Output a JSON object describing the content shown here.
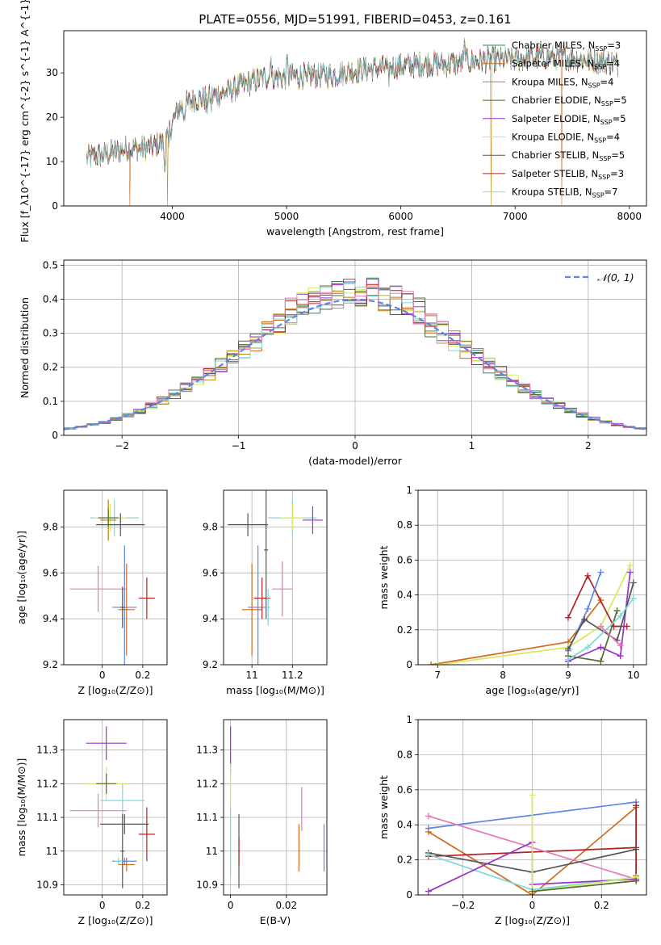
{
  "figure_title": "PLATE=0556, MJD=51991, FIBERID=0453, z=0.161",
  "colors": {
    "chabrier_miles": "#2e8b57",
    "salpeter_miles": "#d2691e",
    "kroupa_miles": "#b8860b",
    "chabrier_elodie": "#556b2f",
    "salpeter_elodie": "#9932cc",
    "kroupa_elodie": "#d4ec5a",
    "chabrier_stelib": "#555555",
    "salpeter_stelib": "#b22222",
    "kroupa_stelib": "#7fd8dc",
    "cornflower": "#5b86e5",
    "pink": "#e67ab8",
    "grid": "#b0b0b0"
  },
  "chart_data": [
    {
      "id": "spectrum",
      "type": "line",
      "xlabel": "wavelength [Angstrom, rest frame]",
      "ylabel": "Flux [f_λ10^{-17} erg cm^{-2} s^{-1} A^{-1}]",
      "xlim": [
        3050,
        8150
      ],
      "ylim": [
        0,
        39.5
      ],
      "xticks": [
        4000,
        5000,
        6000,
        7000,
        8000
      ],
      "yticks": [
        0,
        10,
        20,
        30
      ],
      "legend": {
        "placement": "top-right",
        "entries": [
          {
            "label": "Chabrier MILES, N",
            "sub": "SSP",
            "eq": "=3",
            "color": "chabrier_miles"
          },
          {
            "label": "Salpeter MILES, N",
            "sub": "SSP",
            "eq": "=4",
            "color": "salpeter_miles"
          },
          {
            "label": "Kroupa MILES, N",
            "sub": "SSP",
            "eq": "=4",
            "color": "kroupa_miles"
          },
          {
            "label": "Chabrier ELODIE, N",
            "sub": "SSP",
            "eq": "=5",
            "color": "chabrier_elodie"
          },
          {
            "label": "Salpeter ELODIE, N",
            "sub": "SSP",
            "eq": "=5",
            "color": "salpeter_elodie"
          },
          {
            "label": "Kroupa ELODIE, N",
            "sub": "SSP",
            "eq": "=4",
            "color": "kroupa_elodie"
          },
          {
            "label": "Chabrier STELIB, N",
            "sub": "SSP",
            "eq": "=5",
            "color": "chabrier_stelib"
          },
          {
            "label": "Salpeter STELIB, N",
            "sub": "SSP",
            "eq": "=3",
            "color": "salpeter_stelib"
          },
          {
            "label": "Kroupa STELIB, N",
            "sub": "SSP",
            "eq": "=7",
            "color": "kroupa_stelib"
          }
        ]
      },
      "continuum": [
        [
          3250,
          11
        ],
        [
          3400,
          11.5
        ],
        [
          3600,
          13
        ],
        [
          3750,
          13
        ],
        [
          3850,
          13.5
        ],
        [
          3950,
          15
        ],
        [
          4050,
          22
        ],
        [
          4200,
          24
        ],
        [
          4400,
          25
        ],
        [
          4600,
          27
        ],
        [
          4800,
          29
        ],
        [
          5000,
          29
        ],
        [
          5200,
          29.5
        ],
        [
          5400,
          29.5
        ],
        [
          5600,
          30.5
        ],
        [
          5800,
          31
        ],
        [
          6000,
          31.5
        ],
        [
          6200,
          32
        ],
        [
          6400,
          32
        ],
        [
          6600,
          32.5
        ],
        [
          6800,
          33
        ],
        [
          7000,
          33
        ],
        [
          7200,
          33.5
        ],
        [
          7400,
          33.5
        ],
        [
          7600,
          33
        ],
        [
          7800,
          32.5
        ],
        [
          7900,
          32
        ]
      ],
      "lines": [
        [
          4861,
          5
        ],
        [
          5175,
          -2
        ],
        [
          5890,
          -2
        ],
        [
          6563,
          3
        ],
        [
          4340,
          -2
        ],
        [
          3933,
          -4
        ],
        [
          3968,
          -3
        ],
        [
          4101,
          -2
        ],
        [
          5007,
          3
        ],
        [
          4300,
          -2
        ]
      ],
      "drops": [
        {
          "x": 3960,
          "series": "kroupa_miles"
        },
        {
          "x": 3630,
          "series": "salpeter_miles"
        },
        {
          "x": 6790,
          "series": "kroupa_miles"
        },
        {
          "x": 7410,
          "series": "salpeter_miles"
        }
      ]
    },
    {
      "id": "residual_histogram",
      "type": "bar",
      "xlabel": "(data-model)/error",
      "ylabel": "Normed distribution",
      "xlim": [
        -2.5,
        2.5
      ],
      "ylim": [
        0,
        0.515
      ],
      "xticks": [
        -2,
        -1,
        0,
        1,
        2
      ],
      "yticks": [
        0.0,
        0.1,
        0.2,
        0.3,
        0.4,
        0.5
      ],
      "bin_width": 0.1,
      "legend": {
        "placement": "top-right",
        "entries": [
          {
            "label": "𝒩(0, 1)",
            "color": "cornflower"
          }
        ]
      },
      "normal_curve": {
        "mean": 0,
        "sigma": 1
      }
    },
    {
      "id": "age_vs_Z",
      "type": "scatter",
      "xlabel": "Z [log₁₀(Z/Z⊙)]",
      "ylabel": "age  [log₁₀(age/yr)]",
      "xlim": [
        -0.19,
        0.32
      ],
      "ylim": [
        9.2,
        9.96
      ],
      "xticks": [
        0.0,
        0.2
      ],
      "yticks": [
        9.2,
        9.4,
        9.6,
        9.8
      ],
      "points": [
        {
          "x": 0.06,
          "y": 9.84,
          "xe": 0.12,
          "ye": 0.08,
          "c": "kroupa_stelib"
        },
        {
          "x": 0.04,
          "y": 9.84,
          "xe": 0.08,
          "ye": 0.06,
          "c": "kroupa_elodie"
        },
        {
          "x": 0.09,
          "y": 9.81,
          "xe": 0.12,
          "ye": 0.05,
          "c": "chabrier_stelib"
        },
        {
          "x": 0.03,
          "y": 9.83,
          "xe": 0.04,
          "ye": 0.09,
          "c": "kroupa_miles"
        },
        {
          "x": 0.03,
          "y": 9.84,
          "xe": 0.05,
          "ye": 0.04,
          "c": "chabrier_elodie"
        },
        {
          "x": -0.02,
          "y": 9.53,
          "xe": 0.14,
          "ye": 0.1,
          "c": "pink"
        },
        {
          "x": 0.11,
          "y": 9.45,
          "xe": 0.06,
          "ye": 0.27,
          "c": "cornflower"
        },
        {
          "x": 0.12,
          "y": 9.44,
          "xe": 0.04,
          "ye": 0.2,
          "c": "salpeter_miles"
        },
        {
          "x": 0.1,
          "y": 9.45,
          "xe": 0.01,
          "ye": 0.09,
          "c": "chabrier_stelib"
        },
        {
          "x": 0.22,
          "y": 9.49,
          "xe": 0.04,
          "ye": 0.09,
          "c": "salpeter_stelib"
        }
      ]
    },
    {
      "id": "age_vs_mass",
      "type": "scatter",
      "xlabel": "mass [log₁₀(M/M⊙)]",
      "ylabel": "",
      "xlim": [
        10.86,
        11.37
      ],
      "ylim": [
        9.2,
        9.96
      ],
      "xticks": [
        11.0,
        11.2
      ],
      "yticks": [
        9.2,
        9.4,
        9.6,
        9.8
      ],
      "points": [
        {
          "x": 11.2,
          "y": 9.84,
          "xe": 0.12,
          "ye": 0.08,
          "c": "kroupa_stelib"
        },
        {
          "x": 11.2,
          "y": 9.84,
          "xe": 0.06,
          "ye": 0.06,
          "c": "kroupa_elodie"
        },
        {
          "x": 11.3,
          "y": 9.83,
          "xe": 0.05,
          "ye": 0.06,
          "c": "salpeter_elodie"
        },
        {
          "x": 10.98,
          "y": 9.81,
          "xe": 0.1,
          "ye": 0.05,
          "c": "chabrier_stelib"
        },
        {
          "x": 11.07,
          "y": 9.7,
          "xe": 0.01,
          "ye": 0.3,
          "c": "chabrier_stelib"
        },
        {
          "x": 11.15,
          "y": 9.53,
          "xe": 0.05,
          "ye": 0.12,
          "c": "pink"
        },
        {
          "x": 11.03,
          "y": 9.45,
          "xe": 0.05,
          "ye": 0.27,
          "c": "cornflower"
        },
        {
          "x": 11.0,
          "y": 9.44,
          "xe": 0.05,
          "ye": 0.2,
          "c": "salpeter_miles"
        },
        {
          "x": 11.05,
          "y": 9.49,
          "xe": 0.04,
          "ye": 0.09,
          "c": "salpeter_stelib"
        },
        {
          "x": 11.08,
          "y": 9.45,
          "xe": 0.01,
          "ye": 0.08,
          "c": "kroupa_stelib"
        }
      ]
    },
    {
      "id": "weight_vs_age",
      "type": "line",
      "xlabel": "age  [log₁₀(age/yr)]",
      "ylabel": "mass weight",
      "xlim": [
        6.7,
        10.2
      ],
      "ylim": [
        0,
        1.0
      ],
      "xticks": [
        7,
        8,
        9,
        10
      ],
      "yticks": [
        0.0,
        0.2,
        0.4,
        0.6,
        0.8,
        1.0
      ],
      "series": [
        {
          "c": "salpeter_miles",
          "x": [
            6.9,
            9.0,
            9.5
          ],
          "y": [
            0.0,
            0.13,
            0.37
          ]
        },
        {
          "c": "kroupa_elodie",
          "x": [
            7.0,
            9.0,
            9.5,
            9.95
          ],
          "y": [
            0.0,
            0.1,
            0.22,
            0.57
          ]
        },
        {
          "c": "salpeter_stelib",
          "x": [
            9.0,
            9.3,
            9.7,
            9.9
          ],
          "y": [
            0.27,
            0.51,
            0.22,
            0.22
          ]
        },
        {
          "c": "cornflower",
          "x": [
            9.0,
            9.3,
            9.5
          ],
          "y": [
            0.08,
            0.32,
            0.53
          ]
        },
        {
          "c": "salpeter_elodie",
          "x": [
            9.0,
            9.5,
            9.8,
            9.95
          ],
          "y": [
            0.02,
            0.1,
            0.05,
            0.53
          ]
        },
        {
          "c": "chabrier_stelib",
          "x": [
            9.0,
            9.25,
            9.75,
            10.0
          ],
          "y": [
            0.09,
            0.26,
            0.14,
            0.47
          ]
        },
        {
          "c": "chabrier_elodie",
          "x": [
            9.0,
            9.5,
            9.75
          ],
          "y": [
            0.05,
            0.02,
            0.31
          ]
        },
        {
          "c": "kroupa_stelib",
          "x": [
            9.0,
            9.3,
            9.8,
            10.0
          ],
          "y": [
            0.03,
            0.1,
            0.28,
            0.38
          ]
        },
        {
          "c": "pink",
          "x": [
            9.5,
            9.8
          ],
          "y": [
            0.22,
            0.11
          ]
        }
      ]
    },
    {
      "id": "mass_vs_Z",
      "type": "scatter",
      "xlabel": "Z [log₁₀(Z/Z⊙)]",
      "ylabel": "mass [log₁₀(M/M⊙)]",
      "xlim": [
        -0.19,
        0.32
      ],
      "ylim": [
        10.87,
        11.39
      ],
      "xticks": [
        0.0,
        0.2
      ],
      "yticks": [
        10.9,
        11.0,
        11.1,
        11.2,
        11.3
      ],
      "points": [
        {
          "x": 0.02,
          "y": 11.32,
          "xe": 0.1,
          "ye": 0.05,
          "c": "salpeter_elodie"
        },
        {
          "x": 0.02,
          "y": 11.2,
          "xe": 0.1,
          "ye": 0.05,
          "c": "kroupa_elodie"
        },
        {
          "x": 0.02,
          "y": 11.2,
          "xe": 0.05,
          "ye": 0.03,
          "c": "chabrier_elodie"
        },
        {
          "x": 0.1,
          "y": 11.15,
          "xe": 0.11,
          "ye": 0.05,
          "c": "kroupa_stelib"
        },
        {
          "x": -0.02,
          "y": 11.12,
          "xe": 0.14,
          "ye": 0.05,
          "c": "pink"
        },
        {
          "x": 0.11,
          "y": 11.08,
          "xe": 0.12,
          "ye": 0.03,
          "c": "chabrier_stelib"
        },
        {
          "x": 0.1,
          "y": 11.0,
          "xe": 0.01,
          "ye": 0.11,
          "c": "chabrier_stelib"
        },
        {
          "x": 0.22,
          "y": 11.05,
          "xe": 0.04,
          "ye": 0.08,
          "c": "salpeter_stelib"
        },
        {
          "x": 0.12,
          "y": 10.96,
          "xe": 0.04,
          "ye": 0.02,
          "c": "salpeter_miles"
        },
        {
          "x": 0.11,
          "y": 10.97,
          "xe": 0.06,
          "ye": 0.01,
          "c": "cornflower"
        },
        {
          "x": 0.08,
          "y": 10.97,
          "xe": 0.02,
          "ye": 0.01,
          "c": "kroupa_stelib"
        }
      ]
    },
    {
      "id": "mass_vs_ebv",
      "type": "scatter",
      "xlabel": "E(B-V)",
      "ylabel": "",
      "xlim": [
        -0.0025,
        0.0345
      ],
      "ylim": [
        10.87,
        11.39
      ],
      "xticks": [
        0.0,
        0.02
      ],
      "yticks": [
        10.9,
        11.0,
        11.1,
        11.2,
        11.3
      ],
      "points": [
        {
          "x": 0.0,
          "y": 11.3,
          "xe": 0.0,
          "ye": 0.07,
          "c": "salpeter_elodie"
        },
        {
          "x": 0.0,
          "y": 11.19,
          "xe": 0.0,
          "ye": 0.07,
          "c": "kroupa_elodie"
        },
        {
          "x": 0.0,
          "y": 11.03,
          "xe": 0.0,
          "ye": 0.1,
          "c": "kroupa_stelib"
        },
        {
          "x": 0.003,
          "y": 11.0,
          "xe": 0.0,
          "ye": 0.11,
          "c": "chabrier_stelib"
        },
        {
          "x": 0.003,
          "y": 11.0,
          "xe": 0.0,
          "ye": 0.04,
          "c": "salpeter_stelib"
        },
        {
          "x": 0.0255,
          "y": 11.125,
          "xe": 0.0,
          "ye": 0.065,
          "c": "pink"
        },
        {
          "x": 0.0245,
          "y": 11.01,
          "xe": 0.0,
          "ye": 0.07,
          "c": "salpeter_miles"
        },
        {
          "x": 0.0335,
          "y": 11.01,
          "xe": 0.0,
          "ye": 0.07,
          "c": "cornflower"
        }
      ]
    },
    {
      "id": "weight_vs_Z",
      "type": "line",
      "xlabel": "Z [log₁₀(Z/Z⊙)]",
      "ylabel": "mass weight",
      "xlim": [
        -0.33,
        0.33
      ],
      "ylim": [
        0,
        1.0
      ],
      "xticks": [
        -0.2,
        0.0,
        0.2
      ],
      "yticks": [
        0.0,
        0.2,
        0.4,
        0.6,
        0.8,
        1.0
      ],
      "series": [
        {
          "c": "cornflower",
          "x": [
            -0.3,
            0.3
          ],
          "y": [
            0.38,
            0.53
          ]
        },
        {
          "c": "salpeter_miles",
          "x": [
            -0.3,
            0.0,
            0.3,
            0.3
          ],
          "y": [
            0.36,
            0.0,
            0.5,
            0.11
          ]
        },
        {
          "c": "salpeter_stelib",
          "x": [
            -0.3,
            0.3,
            0.3,
            0.3
          ],
          "y": [
            0.22,
            0.27,
            0.51,
            0.08
          ]
        },
        {
          "c": "pink",
          "x": [
            -0.3,
            0.3
          ],
          "y": [
            0.45,
            0.09
          ]
        },
        {
          "c": "chabrier_stelib",
          "x": [
            -0.3,
            0.0,
            0.3
          ],
          "y": [
            0.24,
            0.13,
            0.26
          ]
        },
        {
          "c": "kroupa_stelib",
          "x": [
            -0.3,
            0.0,
            0.3
          ],
          "y": [
            0.23,
            0.03,
            0.1
          ]
        },
        {
          "c": "salpeter_elodie",
          "x": [
            -0.3,
            0.0,
            0.0,
            0.3
          ],
          "y": [
            0.02,
            0.3,
            0.06,
            0.09
          ]
        },
        {
          "c": "kroupa_elodie",
          "x": [
            0.0,
            0.0,
            0.3
          ],
          "y": [
            0.57,
            0.02,
            0.1
          ]
        },
        {
          "c": "chabrier_elodie",
          "x": [
            0.0,
            0.3
          ],
          "y": [
            0.02,
            0.08
          ]
        }
      ]
    }
  ]
}
